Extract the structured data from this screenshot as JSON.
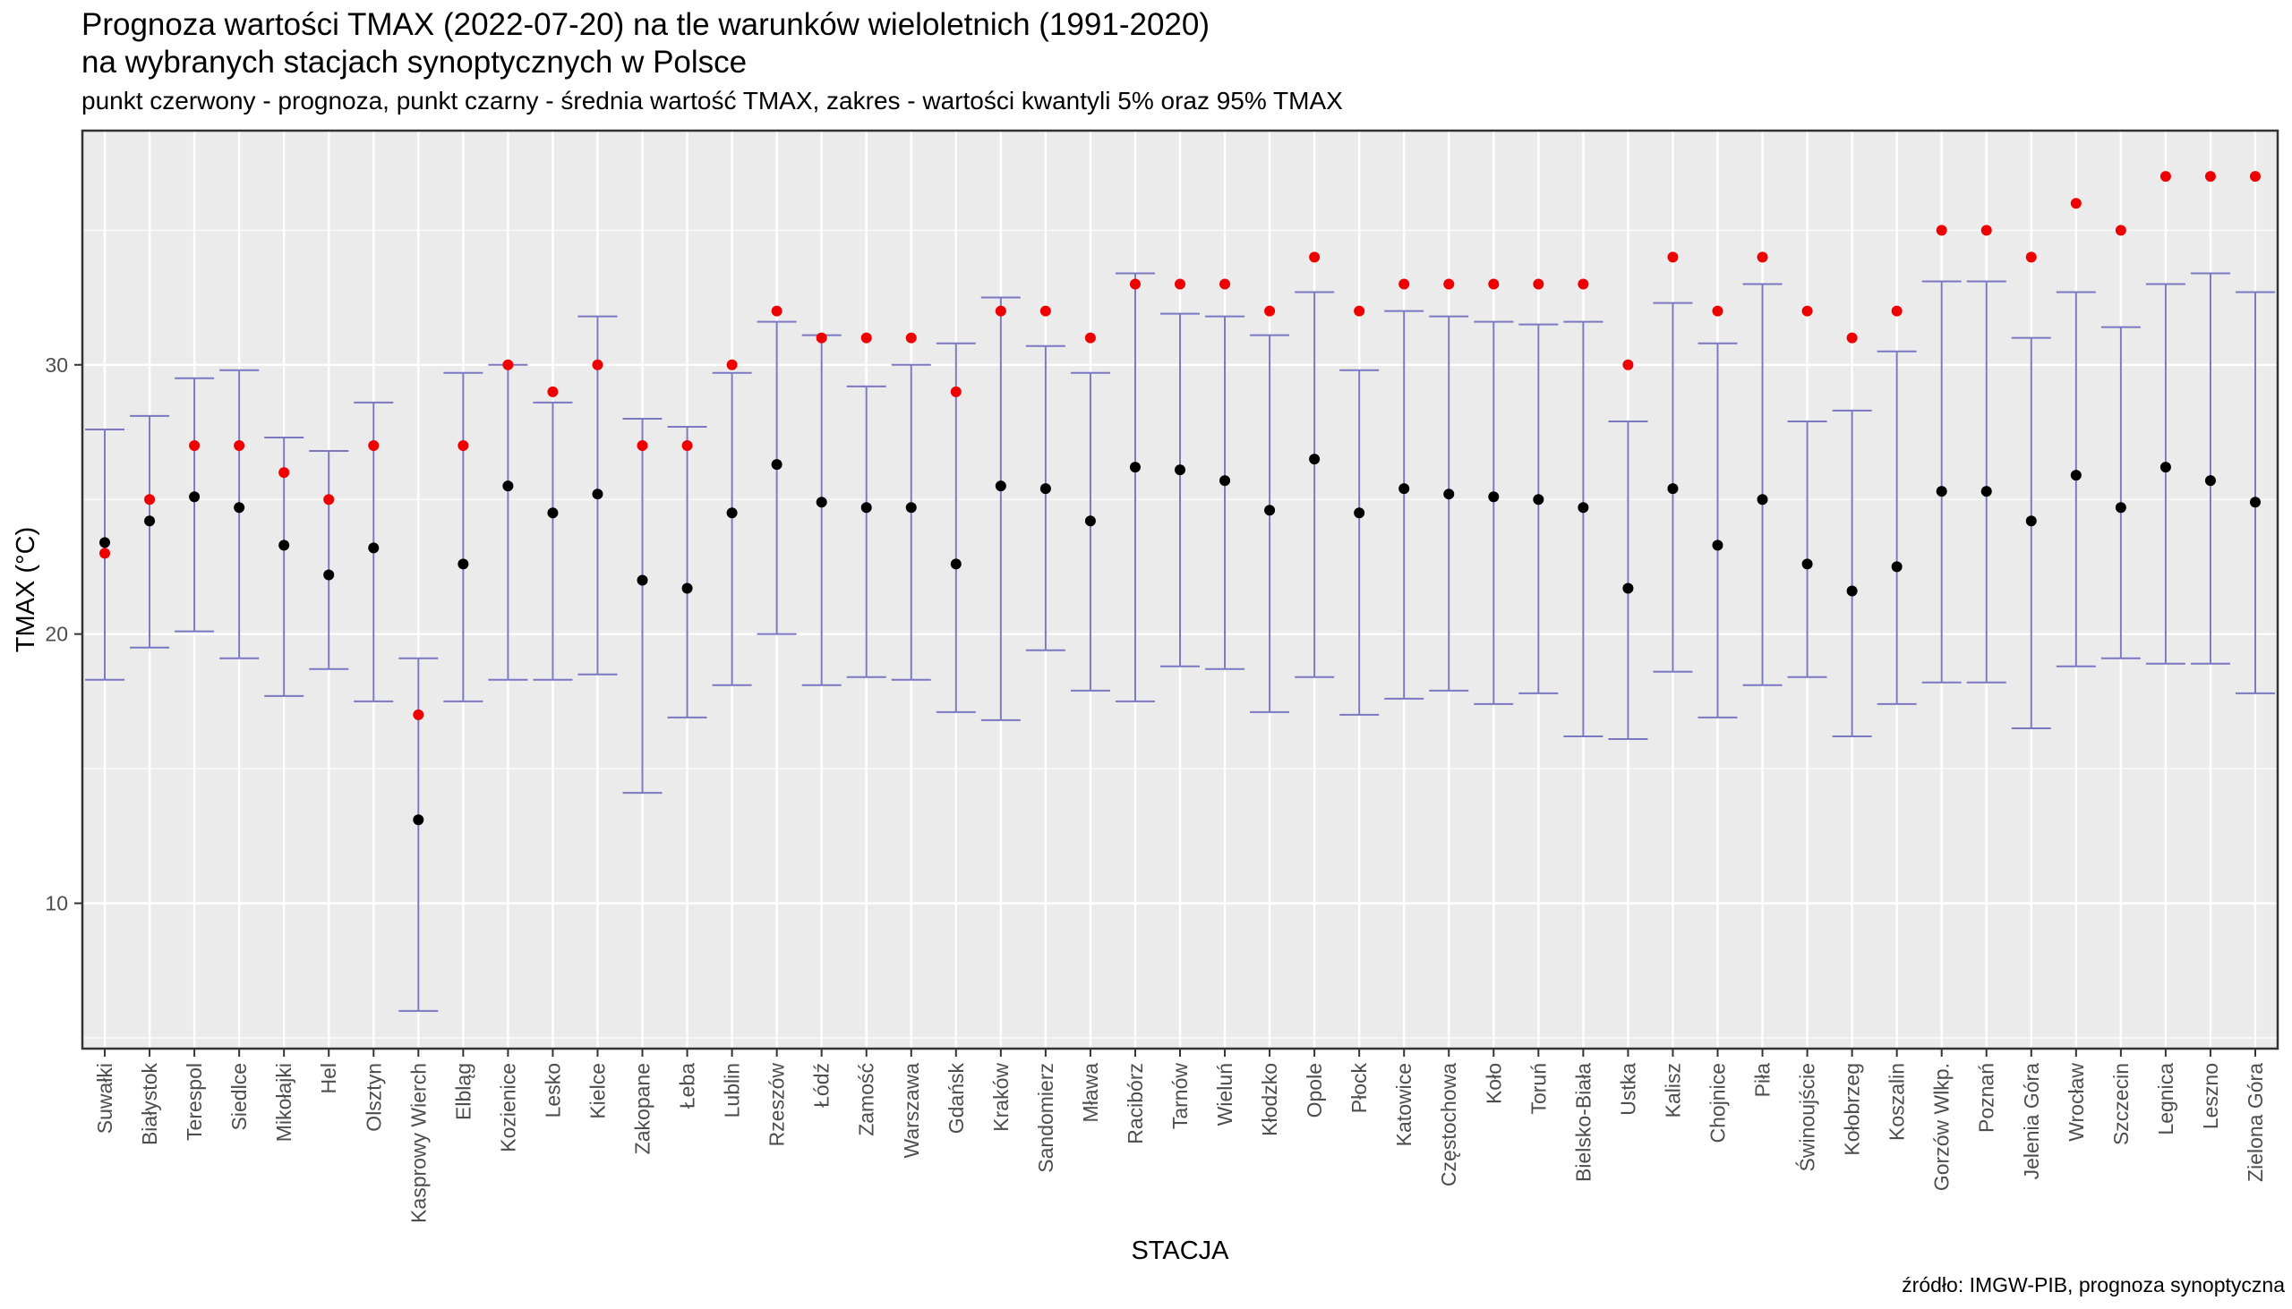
{
  "title_line1": "Prognoza wartości TMAX (2022-07-20) na tle warunków wieloletnich (1991-2020)",
  "title_line2": "na wybranych stacjach synoptycznych w Polsce",
  "subtitle": "punkt czerwony - prognoza, punkt czarny - średnia wartość TMAX, zakres - wartości kwantyli 5% oraz 95% TMAX",
  "source": "źródło: IMGW-PIB, prognoza synoptyczna",
  "colors": {
    "panel_background": "#ebebeb",
    "grid": "#ffffff",
    "range": "#7b78c2",
    "forecast": "#ee0000",
    "mean": "#000000"
  },
  "chart_data": {
    "type": "scatter",
    "xlabel": "STACJA",
    "ylabel": "TMAX (°C)",
    "ylim": [
      4.6,
      38.7
    ],
    "yticks": [
      10,
      20,
      30
    ],
    "grid": true,
    "categories": [
      "Suwałki",
      "Białystok",
      "Terespol",
      "Siedlce",
      "Mikołajki",
      "Hel",
      "Olsztyn",
      "Kasprowy Wierch",
      "Elbląg",
      "Kozienice",
      "Lesko",
      "Kielce",
      "Zakopane",
      "Łeba",
      "Lublin",
      "Rzeszów",
      "Łódź",
      "Zamość",
      "Warszawa",
      "Gdańsk",
      "Kraków",
      "Sandomierz",
      "Mława",
      "Racibórz",
      "Tarnów",
      "Wieluń",
      "Kłodzko",
      "Opole",
      "Płock",
      "Katowice",
      "Częstochowa",
      "Koło",
      "Toruń",
      "Bielsko-Biała",
      "Ustka",
      "Kalisz",
      "Chojnice",
      "Piła",
      "Świnoujście",
      "Kołobrzeg",
      "Koszalin",
      "Gorzów Wlkp.",
      "Poznań",
      "Jelenia Góra",
      "Wrocław",
      "Szczecin",
      "Legnica",
      "Leszno",
      "Zielona Góra"
    ],
    "series": [
      {
        "name": "prognoza",
        "values": [
          23,
          25,
          27,
          27,
          26,
          25,
          27,
          17,
          27,
          30,
          29,
          30,
          27,
          27,
          30,
          32,
          31,
          31,
          31,
          29,
          32,
          32,
          31,
          33,
          33,
          33,
          32,
          34,
          32,
          33,
          33,
          33,
          33,
          33,
          30,
          34,
          32,
          34,
          32,
          31,
          32,
          35,
          35,
          34,
          36,
          35,
          37,
          37,
          37
        ]
      },
      {
        "name": "średnia",
        "values": [
          23.4,
          24.2,
          25.1,
          24.7,
          23.3,
          22.2,
          23.2,
          13.1,
          22.6,
          25.5,
          24.5,
          25.2,
          22.0,
          21.7,
          24.5,
          26.3,
          24.9,
          24.7,
          24.7,
          22.6,
          25.5,
          25.4,
          24.2,
          26.2,
          26.1,
          25.7,
          24.6,
          26.5,
          24.5,
          25.4,
          25.2,
          25.1,
          25.0,
          24.7,
          21.7,
          25.4,
          23.3,
          25.0,
          22.6,
          21.6,
          22.5,
          25.3,
          25.3,
          24.2,
          25.9,
          24.7,
          26.2,
          25.7,
          24.9
        ]
      },
      {
        "name": "kwantyl 5%",
        "values": [
          18.3,
          19.5,
          20.1,
          19.1,
          17.7,
          18.7,
          17.5,
          6.0,
          17.5,
          18.3,
          18.3,
          18.5,
          14.1,
          16.9,
          18.1,
          20.0,
          18.1,
          18.4,
          18.3,
          17.1,
          16.8,
          19.4,
          17.9,
          17.5,
          18.8,
          18.7,
          17.1,
          18.4,
          17.0,
          17.6,
          17.9,
          17.4,
          17.8,
          16.2,
          16.1,
          18.6,
          16.9,
          18.1,
          18.4,
          16.2,
          17.4,
          18.2,
          18.2,
          16.5,
          18.8,
          19.1,
          18.9,
          18.9,
          17.8
        ]
      },
      {
        "name": "kwantyl 95%",
        "values": [
          27.6,
          28.1,
          29.5,
          29.8,
          27.3,
          26.8,
          28.6,
          19.1,
          29.7,
          30.0,
          28.6,
          31.8,
          28.0,
          27.7,
          29.7,
          31.6,
          31.1,
          29.2,
          30.0,
          30.8,
          32.5,
          30.7,
          29.7,
          33.4,
          31.9,
          31.8,
          31.1,
          32.7,
          29.8,
          32.0,
          31.8,
          31.6,
          31.5,
          31.6,
          27.9,
          32.3,
          30.8,
          33.0,
          27.9,
          28.3,
          30.5,
          33.1,
          33.1,
          31.0,
          32.7,
          31.4,
          33.0,
          33.4,
          32.7
        ]
      }
    ]
  }
}
